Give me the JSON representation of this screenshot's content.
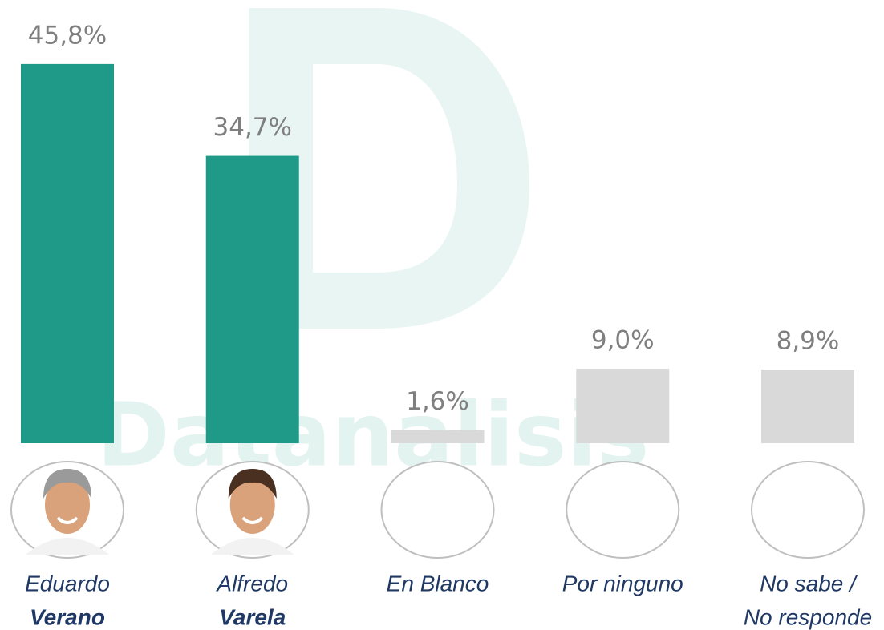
{
  "chart_data": {
    "type": "bar",
    "watermark": "Datanalisis",
    "categories": [
      [
        "Eduardo",
        "Verano"
      ],
      [
        "Alfredo",
        "Varela"
      ],
      [
        "En Blanco"
      ],
      [
        "Por ninguno"
      ],
      [
        "No sabe /",
        "No responde"
      ]
    ],
    "bold_last_line": [
      true,
      true,
      false,
      false,
      false
    ],
    "values": [
      45.8,
      34.7,
      1.6,
      9.0,
      8.9
    ],
    "value_labels": [
      "45,8%",
      "34,7%",
      "1,6%",
      "9,0%",
      "8,9%"
    ],
    "colors": [
      "#1f9a88",
      "#1f9a88",
      "#d9d9d9",
      "#d9d9d9",
      "#d9d9d9"
    ],
    "photos": [
      true,
      true,
      false,
      false,
      false
    ]
  }
}
